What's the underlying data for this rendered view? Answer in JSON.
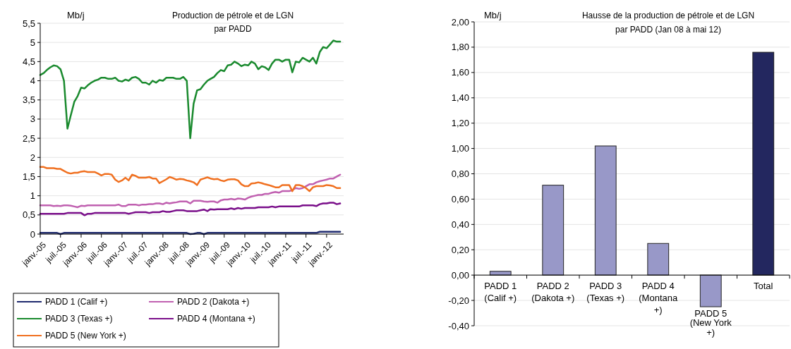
{
  "chart_data": [
    {
      "type": "line",
      "title": "Production de pétrole et de LGN par PADD",
      "ylabel": "Mb/j",
      "x": [
        "2005-01",
        "2005-02",
        "2005-03",
        "2005-04",
        "2005-05",
        "2005-06",
        "2005-07",
        "2005-08",
        "2005-09",
        "2005-10",
        "2005-11",
        "2005-12",
        "2006-01",
        "2006-02",
        "2006-03",
        "2006-04",
        "2006-05",
        "2006-06",
        "2006-07",
        "2006-08",
        "2006-09",
        "2006-10",
        "2006-11",
        "2006-12",
        "2007-01",
        "2007-02",
        "2007-03",
        "2007-04",
        "2007-05",
        "2007-06",
        "2007-07",
        "2007-08",
        "2007-09",
        "2007-10",
        "2007-11",
        "2007-12",
        "2008-01",
        "2008-02",
        "2008-03",
        "2008-04",
        "2008-05",
        "2008-06",
        "2008-07",
        "2008-08",
        "2008-09",
        "2008-10",
        "2008-11",
        "2008-12",
        "2009-01",
        "2009-02",
        "2009-03",
        "2009-04",
        "2009-05",
        "2009-06",
        "2009-07",
        "2009-08",
        "2009-09",
        "2009-10",
        "2009-11",
        "2009-12",
        "2010-01",
        "2010-02",
        "2010-03",
        "2010-04",
        "2010-05",
        "2010-06",
        "2010-07",
        "2010-08",
        "2010-09",
        "2010-10",
        "2010-11",
        "2010-12",
        "2011-01",
        "2011-02",
        "2011-03",
        "2011-04",
        "2011-05",
        "2011-06",
        "2011-07",
        "2011-08",
        "2011-09",
        "2011-10",
        "2011-11",
        "2011-12",
        "2012-01",
        "2012-02",
        "2012-03",
        "2012-04",
        "2012-05"
      ],
      "series": [
        {
          "name": "PADD 1 (Calif +)",
          "color": "#1f2a6e",
          "values": [
            0.03,
            0.03,
            0.03,
            0.03,
            0.03,
            0.03,
            0.0,
            0.03,
            0.03,
            0.03,
            0.03,
            0.03,
            0.03,
            0.03,
            0.03,
            0.03,
            0.03,
            0.03,
            0.03,
            0.03,
            0.03,
            0.03,
            0.03,
            0.03,
            0.03,
            0.03,
            0.03,
            0.03,
            0.03,
            0.03,
            0.03,
            0.03,
            0.03,
            0.03,
            0.03,
            0.03,
            0.03,
            0.03,
            0.03,
            0.03,
            0.03,
            0.03,
            0.03,
            0.03,
            0.0,
            0.01,
            0.03,
            0.03,
            0.0,
            0.03,
            0.03,
            0.03,
            0.03,
            0.03,
            0.03,
            0.03,
            0.03,
            0.03,
            0.03,
            0.03,
            0.03,
            0.03,
            0.03,
            0.03,
            0.03,
            0.03,
            0.03,
            0.03,
            0.03,
            0.03,
            0.03,
            0.03,
            0.03,
            0.03,
            0.03,
            0.03,
            0.03,
            0.03,
            0.03,
            0.03,
            0.03,
            0.03,
            0.06,
            0.06,
            0.06,
            0.06,
            0.06,
            0.06,
            0.06
          ]
        },
        {
          "name": "PADD 2 (Dakota +)",
          "color": "#c060b0",
          "values": [
            0.75,
            0.75,
            0.75,
            0.75,
            0.73,
            0.74,
            0.73,
            0.75,
            0.75,
            0.74,
            0.72,
            0.7,
            0.74,
            0.73,
            0.75,
            0.75,
            0.75,
            0.75,
            0.75,
            0.75,
            0.75,
            0.75,
            0.75,
            0.77,
            0.73,
            0.73,
            0.77,
            0.77,
            0.77,
            0.75,
            0.77,
            0.77,
            0.78,
            0.78,
            0.8,
            0.8,
            0.78,
            0.82,
            0.8,
            0.82,
            0.83,
            0.85,
            0.85,
            0.85,
            0.8,
            0.87,
            0.87,
            0.87,
            0.85,
            0.84,
            0.85,
            0.85,
            0.82,
            0.88,
            0.9,
            0.9,
            0.92,
            0.9,
            0.93,
            0.92,
            0.9,
            0.95,
            0.98,
            1.0,
            1.02,
            1.02,
            1.05,
            1.05,
            1.08,
            1.1,
            1.08,
            1.12,
            1.12,
            1.12,
            1.15,
            1.2,
            1.18,
            1.2,
            1.25,
            1.3,
            1.3,
            1.35,
            1.38,
            1.4,
            1.42,
            1.45,
            1.45,
            1.5,
            1.55
          ]
        },
        {
          "name": "PADD 3 (Texas +)",
          "color": "#1a8a2e",
          "values": [
            4.15,
            4.2,
            4.28,
            4.35,
            4.4,
            4.38,
            4.3,
            4.0,
            2.75,
            3.1,
            3.45,
            3.6,
            3.82,
            3.8,
            3.88,
            3.95,
            4.0,
            4.03,
            4.08,
            4.08,
            4.05,
            4.05,
            4.08,
            4.0,
            3.98,
            4.03,
            4.0,
            4.08,
            4.1,
            4.05,
            3.95,
            3.95,
            3.9,
            4.0,
            3.95,
            4.02,
            4.0,
            4.08,
            4.08,
            4.08,
            4.05,
            4.05,
            4.1,
            4.0,
            2.5,
            3.4,
            3.75,
            3.78,
            3.9,
            4.0,
            4.05,
            4.1,
            4.2,
            4.28,
            4.25,
            4.4,
            4.42,
            4.5,
            4.45,
            4.38,
            4.42,
            4.4,
            4.5,
            4.45,
            4.3,
            4.38,
            4.35,
            4.28,
            4.45,
            4.55,
            4.55,
            4.5,
            4.55,
            4.55,
            4.22,
            4.5,
            4.48,
            4.6,
            4.55,
            4.5,
            4.6,
            4.45,
            4.75,
            4.88,
            4.85,
            4.95,
            5.05,
            5.02,
            5.02
          ]
        },
        {
          "name": "PADD 4 (Montana +)",
          "color": "#7a0f8a",
          "values": [
            0.53,
            0.53,
            0.53,
            0.53,
            0.53,
            0.53,
            0.53,
            0.53,
            0.55,
            0.55,
            0.55,
            0.55,
            0.55,
            0.49,
            0.53,
            0.53,
            0.55,
            0.55,
            0.55,
            0.55,
            0.55,
            0.55,
            0.55,
            0.55,
            0.55,
            0.55,
            0.53,
            0.55,
            0.57,
            0.57,
            0.57,
            0.57,
            0.55,
            0.57,
            0.57,
            0.57,
            0.6,
            0.58,
            0.58,
            0.6,
            0.62,
            0.62,
            0.62,
            0.6,
            0.6,
            0.6,
            0.6,
            0.62,
            0.64,
            0.6,
            0.65,
            0.64,
            0.65,
            0.65,
            0.65,
            0.65,
            0.67,
            0.65,
            0.68,
            0.66,
            0.68,
            0.68,
            0.68,
            0.68,
            0.7,
            0.7,
            0.7,
            0.7,
            0.72,
            0.7,
            0.72,
            0.72,
            0.72,
            0.72,
            0.72,
            0.72,
            0.72,
            0.75,
            0.75,
            0.75,
            0.75,
            0.73,
            0.78,
            0.8,
            0.8,
            0.82,
            0.82,
            0.78,
            0.8
          ]
        },
        {
          "name": "PADD 5 (New York +)",
          "color": "#f07020",
          "values": [
            1.75,
            1.75,
            1.72,
            1.72,
            1.72,
            1.7,
            1.7,
            1.65,
            1.6,
            1.58,
            1.6,
            1.6,
            1.63,
            1.64,
            1.62,
            1.62,
            1.62,
            1.58,
            1.53,
            1.57,
            1.57,
            1.55,
            1.42,
            1.36,
            1.4,
            1.47,
            1.4,
            1.55,
            1.52,
            1.47,
            1.47,
            1.47,
            1.49,
            1.45,
            1.45,
            1.33,
            1.38,
            1.43,
            1.49,
            1.46,
            1.42,
            1.44,
            1.43,
            1.4,
            1.38,
            1.35,
            1.28,
            1.42,
            1.45,
            1.48,
            1.45,
            1.43,
            1.44,
            1.4,
            1.38,
            1.42,
            1.43,
            1.43,
            1.4,
            1.3,
            1.25,
            1.25,
            1.32,
            1.33,
            1.35,
            1.33,
            1.3,
            1.28,
            1.25,
            1.22,
            1.22,
            1.28,
            1.28,
            1.28,
            1.12,
            1.28,
            1.28,
            1.25,
            1.2,
            1.12,
            1.22,
            1.25,
            1.25,
            1.25,
            1.28,
            1.27,
            1.25,
            1.2,
            1.2
          ]
        }
      ],
      "xlim": [
        "2005-01",
        "2012-06"
      ],
      "xticks": [
        {
          "value": "2005-01",
          "label": "janv.-05"
        },
        {
          "value": "2005-07",
          "label": "juil.-05"
        },
        {
          "value": "2006-01",
          "label": "janv.-06"
        },
        {
          "value": "2006-07",
          "label": "juil.-06"
        },
        {
          "value": "2007-01",
          "label": "janv.-07"
        },
        {
          "value": "2007-07",
          "label": "juil.-07"
        },
        {
          "value": "2008-01",
          "label": "janv.-08"
        },
        {
          "value": "2008-07",
          "label": "juil.-08"
        },
        {
          "value": "2009-01",
          "label": "janv.-09"
        },
        {
          "value": "2009-07",
          "label": "juil.-09"
        },
        {
          "value": "2010-01",
          "label": "janv.-10"
        },
        {
          "value": "2010-07",
          "label": "juil.-10"
        },
        {
          "value": "2011-01",
          "label": "janv.-11"
        },
        {
          "value": "2011-07",
          "label": "juil.-11"
        },
        {
          "value": "2012-01",
          "label": "janv.-12"
        }
      ],
      "ylim": [
        0,
        5.5
      ],
      "yticks": [
        0,
        {
          "value": 0.5,
          "label": "0,5"
        },
        1,
        {
          "value": 1.5,
          "label": "1,5"
        },
        2,
        {
          "value": 2.5,
          "label": "2,5"
        },
        3,
        {
          "value": 3.5,
          "label": "3,5"
        },
        4,
        {
          "value": 4.5,
          "label": "4,5"
        },
        5,
        {
          "value": 5.5,
          "label": "5,5"
        }
      ],
      "grid": "y",
      "legend": "bottom"
    },
    {
      "type": "bar",
      "title": "Hausse de la production de pétrole et de LGN par PADD (Jan 08 à mai 12)",
      "ylabel": "Mb/j",
      "categories": [
        "PADD 1 (Calif +)",
        "PADD 2 (Dakota +)",
        "PADD 3 (Texas +)",
        "PADD 4 (Montana +)",
        "PADD 5 (New York +)",
        "Total"
      ],
      "values": [
        0.03,
        0.71,
        1.02,
        0.25,
        -0.25,
        1.76
      ],
      "colors": [
        "#9898c8",
        "#9898c8",
        "#9898c8",
        "#9898c8",
        "#9898c8",
        "#23275f"
      ],
      "ylim": [
        -0.4,
        2.0
      ],
      "yticks": [
        {
          "value": -0.4,
          "label": "-0,40"
        },
        {
          "value": -0.2,
          "label": "-0,20"
        },
        {
          "value": 0,
          "label": "0,00"
        },
        {
          "value": 0.2,
          "label": "0,20"
        },
        {
          "value": 0.4,
          "label": "0,40"
        },
        {
          "value": 0.6,
          "label": "0,60"
        },
        {
          "value": 0.8,
          "label": "0,80"
        },
        {
          "value": 1.0,
          "label": "1,00"
        },
        {
          "value": 1.2,
          "label": "1,20"
        },
        {
          "value": 1.4,
          "label": "1,40"
        },
        {
          "value": 1.6,
          "label": "1,60"
        },
        {
          "value": 1.8,
          "label": "1,80"
        },
        {
          "value": 2.0,
          "label": "2,00"
        }
      ],
      "grid": "y"
    }
  ]
}
